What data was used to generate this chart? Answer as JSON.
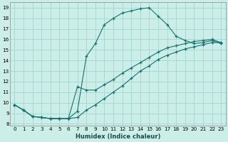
{
  "xlabel": "Humidex (Indice chaleur)",
  "bg_color": "#cceee8",
  "grid_color": "#aad8d2",
  "line_color": "#1a7070",
  "xlim": [
    -0.5,
    23.5
  ],
  "ylim": [
    7.8,
    19.5
  ],
  "xticks": [
    0,
    1,
    2,
    3,
    4,
    5,
    6,
    7,
    8,
    9,
    10,
    11,
    12,
    13,
    14,
    15,
    16,
    17,
    18,
    19,
    20,
    21,
    22,
    23
  ],
  "yticks": [
    8,
    9,
    10,
    11,
    12,
    13,
    14,
    15,
    16,
    17,
    18,
    19
  ],
  "curve1_x": [
    0,
    1,
    2,
    3,
    4,
    5,
    6,
    7,
    8,
    9,
    10,
    11,
    12,
    13,
    14,
    15,
    16,
    17,
    18,
    19,
    20,
    21,
    22,
    23
  ],
  "curve1_y": [
    9.8,
    9.3,
    8.7,
    8.6,
    8.5,
    8.5,
    8.5,
    9.2,
    14.4,
    15.6,
    17.4,
    18.0,
    18.5,
    18.7,
    18.9,
    19.0,
    18.2,
    17.4,
    16.3,
    15.9,
    15.6,
    15.7,
    15.9,
    15.6
  ],
  "curve2_x": [
    0,
    1,
    2,
    3,
    4,
    5,
    6,
    7,
    8,
    9,
    10,
    11,
    12,
    13,
    14,
    15,
    16,
    17,
    18,
    19,
    20,
    21,
    22,
    23
  ],
  "curve2_y": [
    9.8,
    9.3,
    8.7,
    8.6,
    8.5,
    8.5,
    8.5,
    11.5,
    11.2,
    11.2,
    11.7,
    12.2,
    12.8,
    13.3,
    13.8,
    14.3,
    14.8,
    15.2,
    15.4,
    15.6,
    15.8,
    15.9,
    16.0,
    15.7
  ],
  "curve3_x": [
    0,
    1,
    2,
    3,
    4,
    5,
    6,
    7,
    8,
    9,
    10,
    11,
    12,
    13,
    14,
    15,
    16,
    17,
    18,
    19,
    20,
    21,
    22,
    23
  ],
  "curve3_y": [
    9.8,
    9.3,
    8.7,
    8.6,
    8.5,
    8.5,
    8.5,
    8.6,
    9.3,
    9.8,
    10.4,
    11.0,
    11.6,
    12.3,
    13.0,
    13.5,
    14.1,
    14.5,
    14.8,
    15.1,
    15.3,
    15.5,
    15.7,
    15.7
  ]
}
